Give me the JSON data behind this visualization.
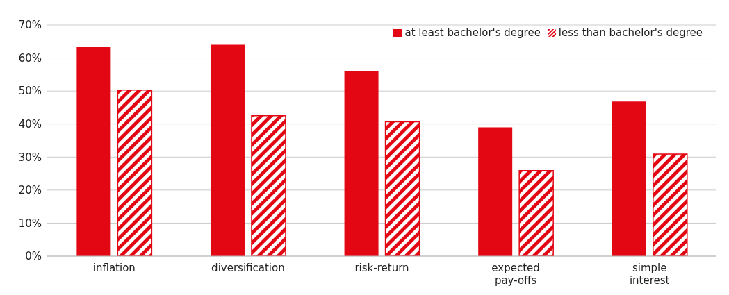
{
  "chart_data": {
    "type": "bar",
    "categories": [
      "inflation",
      "diversification",
      "risk-return",
      "expected pay-offs",
      "simple interest"
    ],
    "series": [
      {
        "name": "at least bachelor's degree",
        "color": "#e30613",
        "values": [
          63.5,
          64,
          56,
          39,
          46.8
        ]
      },
      {
        "name": "less than bachelor's degree",
        "color": "#e30613",
        "values": [
          50.3,
          42.5,
          40.7,
          25.9,
          30.9
        ]
      }
    ],
    "ylim": [
      0,
      70
    ],
    "yticks": [
      {
        "value": 0,
        "label": "0%"
      },
      {
        "value": 10,
        "label": "10%"
      },
      {
        "value": 20,
        "label": "20%"
      },
      {
        "value": 30,
        "label": "30%"
      },
      {
        "value": 40,
        "label": "40%"
      },
      {
        "value": 50,
        "label": "50%"
      },
      {
        "value": 60,
        "label": "60%"
      },
      {
        "value": 70,
        "label": "70%"
      }
    ],
    "grid": "y",
    "legend": "top right"
  }
}
